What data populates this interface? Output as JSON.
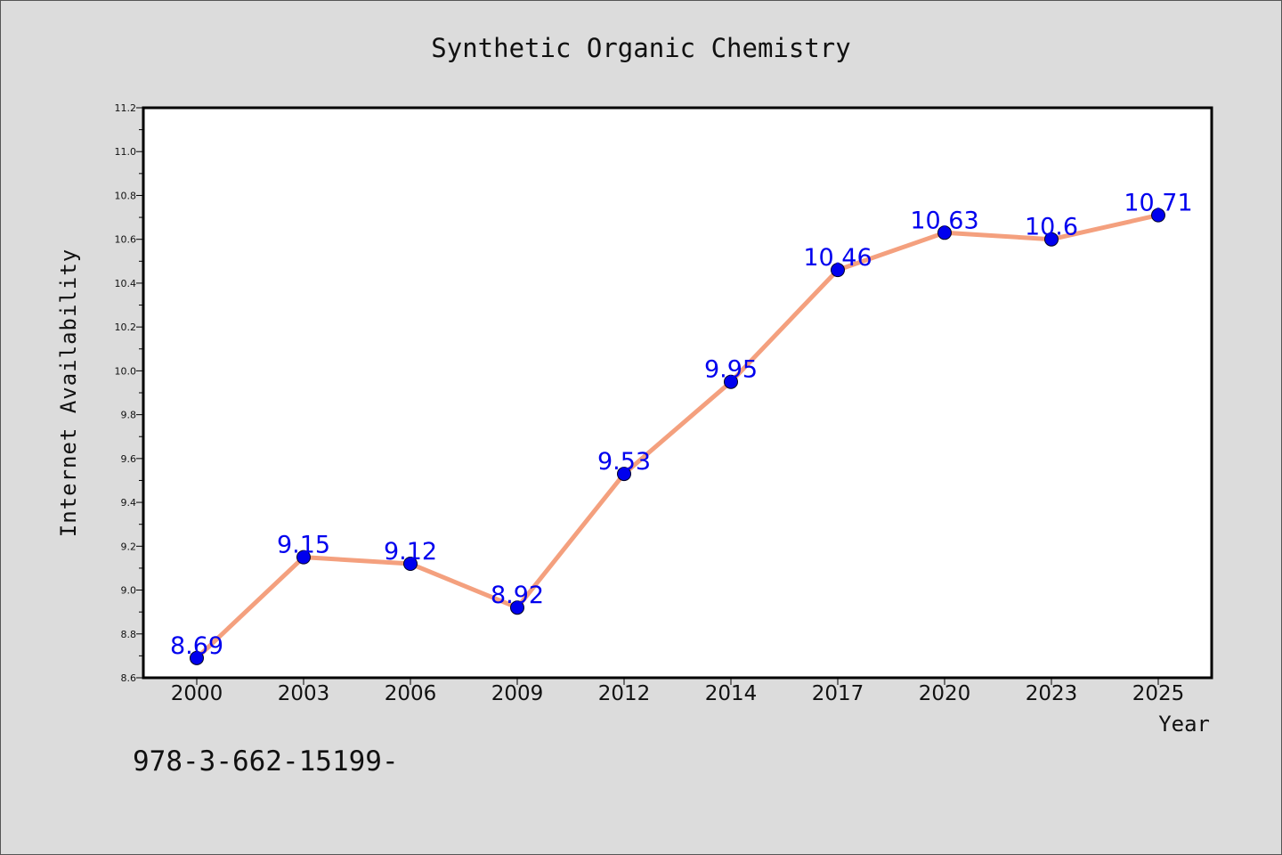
{
  "chart_data": {
    "type": "line",
    "title": "Synthetic Organic Chemistry",
    "xlabel": "Year",
    "ylabel": "Internet Availability",
    "categories": [
      "2000",
      "2003",
      "2006",
      "2009",
      "2012",
      "2014",
      "2017",
      "2020",
      "2023",
      "2025"
    ],
    "series": [
      {
        "values": [
          8.69,
          9.15,
          9.12,
          8.92,
          9.53,
          9.95,
          10.46,
          10.63,
          10.6,
          10.71
        ],
        "data_labels": [
          "8.69",
          "9.15",
          "9.12",
          "8.92",
          "9.53",
          "9.95",
          "10.46",
          "10.63",
          "10.6",
          "10.71"
        ]
      }
    ],
    "ylim": [
      8.6,
      11.2
    ],
    "yticks": [
      "8.6",
      "8.8",
      "9.0",
      "9.2",
      "9.4",
      "9.6",
      "9.8",
      "10.0",
      "10.2",
      "10.4",
      "10.6",
      "10.8",
      "11.0",
      "11.2"
    ],
    "grid": false,
    "legend": "none",
    "colors": {
      "line": "#f4a07e",
      "marker": "#0000ee",
      "labels": "#0000ee",
      "plot_bg": "#ffffff",
      "page_bg": "#dcdcdc"
    }
  },
  "footnote": "978-3-662-15199-"
}
